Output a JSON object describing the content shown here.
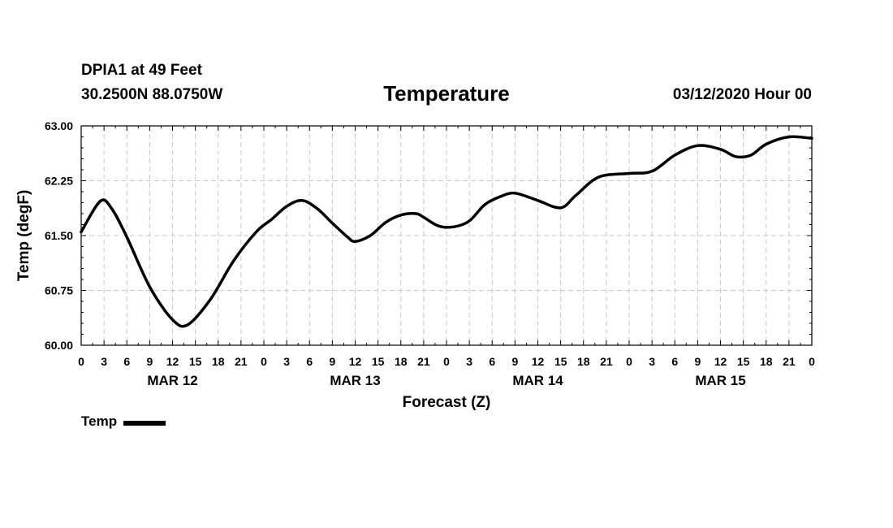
{
  "header": {
    "station": "DPIA1 at 49 Feet",
    "coords": "30.2500N 88.0750W",
    "datetime": "03/12/2020 Hour 00"
  },
  "chart_data": {
    "type": "line",
    "title": "Temperature",
    "xlabel": "Forecast (Z)",
    "ylabel": "Temp (degF)",
    "ylim": [
      60.0,
      63.0
    ],
    "xlim": [
      0,
      96
    ],
    "y_ticks": [
      "60.00",
      "60.75",
      "61.50",
      "62.25",
      "63.00"
    ],
    "x_tick_labels": [
      "0",
      "3",
      "6",
      "9",
      "12",
      "15",
      "18",
      "21",
      "0",
      "3",
      "6",
      "9",
      "12",
      "15",
      "18",
      "21",
      "0",
      "3",
      "6",
      "9",
      "12",
      "15",
      "18",
      "21",
      "0",
      "3",
      "6",
      "9",
      "12",
      "15",
      "18",
      "21",
      "0"
    ],
    "day_labels": [
      "MAR 12",
      "MAR 13",
      "MAR 14",
      "MAR 15"
    ],
    "grid": true,
    "legend_position": "bottom-left",
    "series": [
      {
        "name": "Temp",
        "color": "#000000",
        "x": [
          0,
          2.5,
          4,
          6,
          9,
          12,
          14,
          17,
          20,
          23,
          25,
          27,
          29,
          31,
          33,
          35,
          36,
          38,
          40,
          42,
          44,
          45,
          47,
          49,
          51,
          53,
          55,
          57,
          60,
          63,
          65,
          68,
          72,
          75,
          78,
          81,
          84,
          86,
          88,
          90,
          93,
          96
        ],
        "values": [
          61.55,
          61.97,
          61.87,
          61.48,
          60.8,
          60.35,
          60.28,
          60.63,
          61.15,
          61.55,
          61.72,
          61.9,
          61.98,
          61.87,
          61.67,
          61.48,
          61.42,
          61.5,
          61.68,
          61.78,
          61.8,
          61.75,
          61.63,
          61.62,
          61.7,
          61.92,
          62.03,
          62.08,
          61.98,
          61.88,
          62.05,
          62.3,
          62.35,
          62.38,
          62.6,
          62.73,
          62.68,
          62.58,
          62.6,
          62.75,
          62.85,
          62.83
        ]
      }
    ]
  }
}
